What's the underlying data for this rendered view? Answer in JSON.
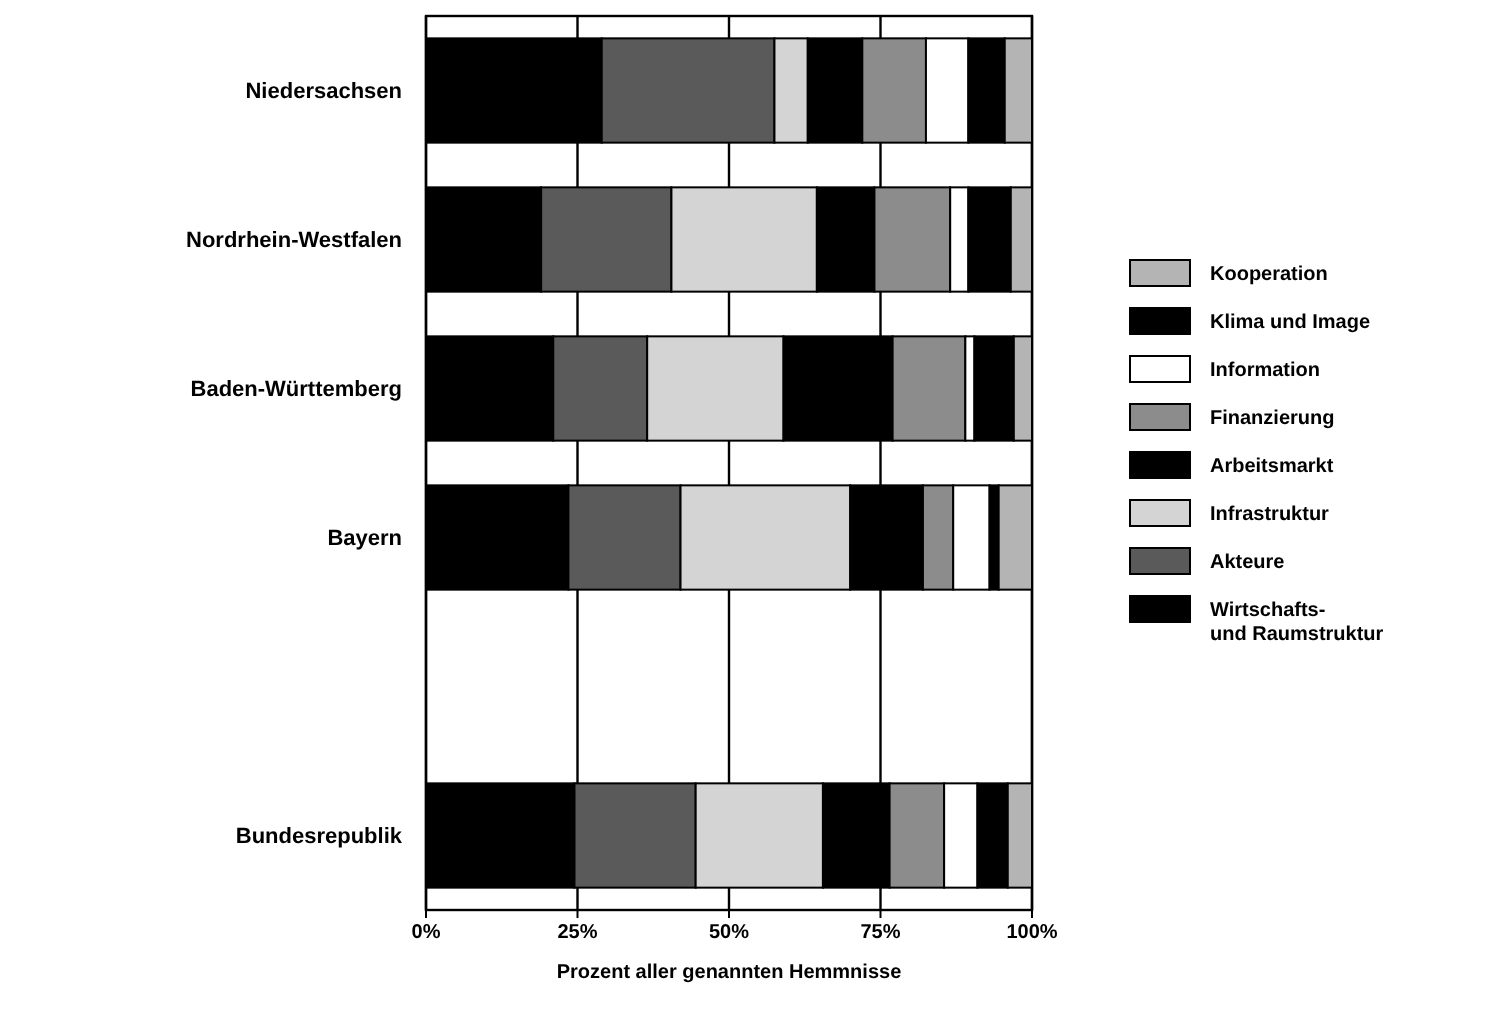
{
  "chart_data": {
    "type": "bar",
    "orientation": "horizontal",
    "stacked": true,
    "categories": [
      "Niedersachsen",
      "Nordrhein-Westfalen",
      "Baden-Württemberg",
      "Bayern",
      null,
      "Bundesrepublik"
    ],
    "series": [
      {
        "name": "Wirtschafts- und Raumstruktur",
        "color": "#000000",
        "values": [
          29,
          19,
          21,
          23.5,
          null,
          24.5
        ]
      },
      {
        "name": "Akteure",
        "color": "#5a5a5a",
        "values": [
          28.5,
          21.5,
          15.5,
          18.5,
          null,
          20
        ]
      },
      {
        "name": "Infrastruktur",
        "color": "#d4d4d4",
        "values": [
          5.5,
          24,
          22.5,
          28,
          null,
          21
        ]
      },
      {
        "name": "Arbeitsmarkt",
        "color": "#000000",
        "values": [
          9,
          9.5,
          18,
          12,
          null,
          11
        ]
      },
      {
        "name": "Finanzierung",
        "color": "#8c8c8c",
        "values": [
          10.5,
          12.5,
          12,
          5,
          null,
          9
        ]
      },
      {
        "name": "Information",
        "color": "#ffffff",
        "values": [
          7,
          3,
          1.5,
          6,
          null,
          5.5
        ]
      },
      {
        "name": "Klima und Image",
        "color": "#000000",
        "values": [
          6,
          7,
          6.5,
          1.5,
          null,
          5
        ]
      },
      {
        "name": "Kooperation",
        "color": "#b4b4b4",
        "values": [
          4.5,
          3.5,
          3,
          5.5,
          null,
          4
        ]
      }
    ],
    "xlim": [
      0,
      100
    ],
    "xticks": [
      {
        "value": 0,
        "label": "0%"
      },
      {
        "value": 25,
        "label": "25%"
      },
      {
        "value": 50,
        "label": "50%"
      },
      {
        "value": 75,
        "label": "75%"
      },
      {
        "value": 100,
        "label": "100%"
      }
    ],
    "xlabel": "Prozent aller genannten Hemmnisse",
    "grid": "x",
    "legend": "right"
  }
}
